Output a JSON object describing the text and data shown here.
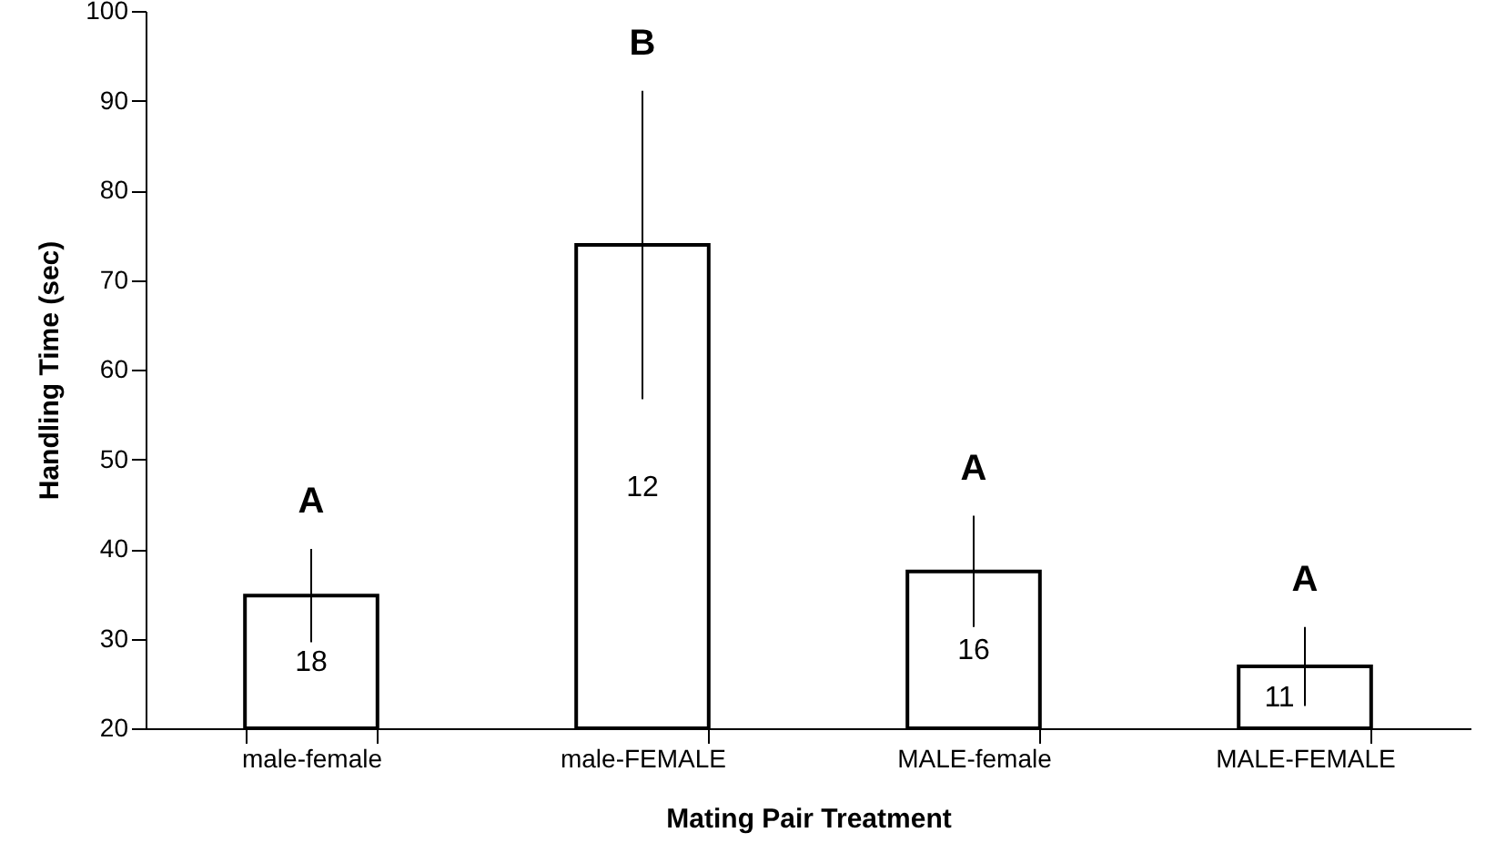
{
  "chart_data": {
    "type": "bar",
    "categories": [
      "male-female",
      "male-FEMALE",
      "MALE-female",
      "MALE-FEMALE"
    ],
    "values": [
      34.8,
      73.9,
      37.5,
      26.9
    ],
    "errors": [
      5.2,
      17.2,
      6.2,
      4.4
    ],
    "color": "#ffffff",
    "xlabel": "Mating Pair Treatment",
    "ylabel": "Handling Time (sec)",
    "ylim": [
      20,
      100
    ],
    "yticks": [
      20,
      30,
      40,
      50,
      60,
      70,
      80,
      90,
      100
    ],
    "grid": false,
    "annotations": [
      "A",
      "B",
      "A",
      "A",
      "18",
      "12",
      "16",
      "11"
    ]
  }
}
